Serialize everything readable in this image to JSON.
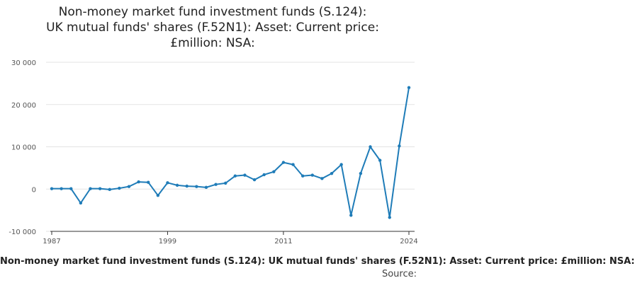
{
  "title": "Non-money market fund investment funds (S.124): UK mutual funds' shares (F.52N1): Asset: Current price: £million: NSA:",
  "footer": {
    "series_label": "Non-money market fund investment funds (S.124): UK mutual funds' shares (F.52N1): Asset: Current price: £million: NSA:",
    "source_label": "Source:"
  },
  "colors": {
    "line": "#1f7cb8",
    "grid": "#e3e3e3",
    "axis": "#333333"
  },
  "chart_data": {
    "type": "line",
    "title": "Non-money market fund investment funds (S.124): UK mutual funds' shares (F.52N1): Asset: Current price: £million: NSA:",
    "xlabel": "",
    "ylabel": "",
    "xlim": [
      1987,
      2024
    ],
    "ylim": [
      -10000,
      30000
    ],
    "x_ticks": [
      1987,
      1999,
      2011,
      2024
    ],
    "y_ticks": [
      30000,
      20000,
      10000,
      0,
      -10000
    ],
    "x_tick_labels": [
      "1987",
      "1999",
      "2011",
      "2024"
    ],
    "y_tick_labels": [
      "30 000",
      "20 000",
      "10 000",
      "0",
      "-10 000"
    ],
    "grid": "horizontal",
    "series": [
      {
        "x": [
          1987,
          1988,
          1989,
          1990,
          1991,
          1992,
          1993,
          1994,
          1995,
          1996,
          1997,
          1998,
          1999,
          2000,
          2001,
          2002,
          2003,
          2004,
          2005,
          2006,
          2007,
          2008,
          2009,
          2010,
          2011,
          2012,
          2013,
          2014,
          2015,
          2016,
          2017,
          2018,
          2019,
          2020,
          2021,
          2022,
          2023,
          2024
        ],
        "values": [
          100,
          100,
          100,
          -3300,
          100,
          100,
          -100,
          200,
          600,
          1700,
          1600,
          -1500,
          1500,
          900,
          700,
          600,
          400,
          1100,
          1400,
          3100,
          3300,
          2200,
          3400,
          4100,
          6300,
          5800,
          3100,
          3300,
          2500,
          3700,
          5800,
          -6200,
          3700,
          10000,
          6800,
          -6700,
          10200,
          24000
        ]
      }
    ]
  }
}
